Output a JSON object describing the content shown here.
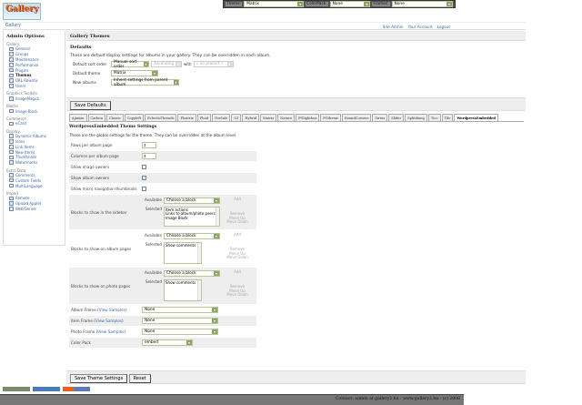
{
  "logo": {
    "text": "Gallery"
  },
  "topbar": {
    "theme_label": "Theme:",
    "theme_value": "Matrix",
    "colorpack_label": "ColorPack:",
    "colorpack_value": "None",
    "frames_label": "Frames:",
    "frames_value": "None"
  },
  "breadcrumb": "Gallery",
  "user_links": [
    "Site Admin",
    "Your Account",
    "Logout"
  ],
  "sidebar": {
    "title": "Admin Options",
    "groups": [
      {
        "label": "Gallery",
        "items": [
          {
            "label": "General"
          },
          {
            "label": "Groups"
          },
          {
            "label": "Maintenance"
          },
          {
            "label": "Performance"
          },
          {
            "label": "Plugins"
          },
          {
            "label": "Themes",
            "current": true
          },
          {
            "label": "URL Rewrite"
          },
          {
            "label": "Users"
          }
        ]
      },
      {
        "label": "Graphics Toolkits",
        "items": [
          {
            "label": "ImageMagick"
          }
        ]
      },
      {
        "label": "Blocks",
        "items": [
          {
            "label": "Image Block"
          }
        ]
      },
      {
        "label": "Commerce",
        "items": [
          {
            "label": "eCard"
          }
        ]
      },
      {
        "label": "Display",
        "items": [
          {
            "label": "Dynamic Albums"
          },
          {
            "label": "Icons"
          },
          {
            "label": "Link Items"
          },
          {
            "label": "New Items"
          },
          {
            "label": "Thumbnails"
          },
          {
            "label": "Watermarks"
          }
        ]
      },
      {
        "label": "Extra Data",
        "items": [
          {
            "label": "Comments"
          },
          {
            "label": "Custom Fields"
          },
          {
            "label": "MultiLanguage"
          }
        ]
      },
      {
        "label": "Import",
        "items": [
          {
            "label": "Remote"
          },
          {
            "label": "Upload Applet"
          },
          {
            "label": "Web/Server"
          }
        ]
      }
    ]
  },
  "main": {
    "title": "Gallery Themes",
    "defaults": {
      "heading": "Defaults",
      "description": "These are default display settings for albums in your gallery. They can be overridden in each album.",
      "sort_label": "Default sort order",
      "sort_value": "Manual sort order",
      "direction_value": "Ascending",
      "with_label": "with",
      "presort_value": "« no presort »",
      "theme_label": "Default theme",
      "theme_value": "Matrix",
      "new_albums_label": "New albums",
      "new_albums_value": "Inherit settings from parent album",
      "save_button": "Save Defaults"
    },
    "tabs": [
      "Ajaxian",
      "Carbon",
      "Classic",
      "Copyleft",
      "EclecticThreads",
      "Floatrix",
      "Fluid",
      "ForSale",
      "G1",
      "Hybrid",
      "Matrix",
      "Nature",
      "PGlightbox",
      "PGtheme",
      "RoundCorners",
      "Siriux",
      "Slider",
      "Splitdiang",
      "Tico",
      "Tile",
      "WordpressEmbedded"
    ],
    "active_tab": "WordpressEmbedded",
    "theme_settings": {
      "heading": "WordpressEmbedded Theme Settings",
      "description": "These are the global settings for the theme. They can be overridden at the album level.",
      "rows_label": "Rows per album page",
      "rows_value": "3",
      "cols_label": "Columns per album page",
      "cols_value": "3",
      "image_owners_label": "Show image owners",
      "image_owners_checked": false,
      "album_owners_label": "Show album owners",
      "album_owners_checked": true,
      "micro_nav_label": "Show micro navigation thumbnails",
      "micro_nav_checked": false,
      "available_label": "Available",
      "selected_label": "Selected",
      "choose_block": "Choose a block",
      "add": "Add",
      "remove": "Remove",
      "move_up": "Move Up",
      "move_down": "Move Down",
      "sidebar_blocks_label": "Blocks to show in the sidebar",
      "sidebar_selected": [
        "Item actions",
        "Links to album/photo peers",
        "Image Block"
      ],
      "album_blocks_label": "Blocks to show on album pages",
      "album_selected": [
        "Show comments"
      ],
      "photo_blocks_label": "Blocks to show on photo pages",
      "photo_selected": [
        "Show comments"
      ],
      "album_frame_label": "Album Frame",
      "item_frame_label": "Item Frame",
      "photo_frame_label": "Photo Frame",
      "view_samples": "View Samples",
      "album_frame_value": "None",
      "item_frame_value": "None",
      "photo_frame_value": "None",
      "color_pack_label": "Color Pack",
      "color_pack_value": "embed",
      "save_button": "Save Theme Settings",
      "reset_button": "Reset"
    }
  },
  "badges": [
    "W3C XHTML 1.0",
    "W3C CSS",
    "MADE WITH GALLERY 2"
  ],
  "footer": "Contact: admin at gallery2.hu - www.gallery2.hu - (c) 2006",
  "colors": {
    "link": "#3a66a8",
    "topbar": "#555555",
    "select_button": "#8ea368"
  }
}
